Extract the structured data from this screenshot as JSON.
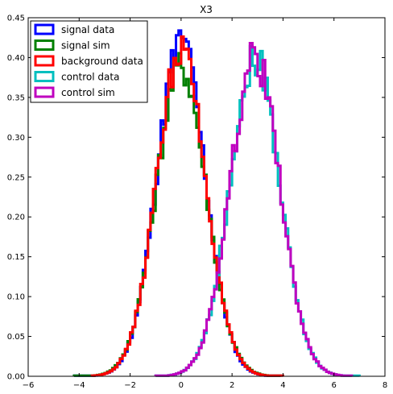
{
  "chart_data": {
    "type": "line",
    "title": "X3",
    "xlabel": "",
    "ylabel": "",
    "xlim": [
      -6,
      8
    ],
    "ylim": [
      0,
      0.45
    ],
    "xticks": [
      "−6",
      "−4",
      "−2",
      "0",
      "2",
      "4",
      "6",
      "8"
    ],
    "yticks": [
      "0.00",
      "0.05",
      "0.10",
      "0.15",
      "0.20",
      "0.25",
      "0.30",
      "0.35",
      "0.40",
      "0.45"
    ],
    "grid": false,
    "legend": "top-left",
    "series": [
      {
        "name": "signal data",
        "color": "#0000ff",
        "mean": 0.0,
        "peak": 0.42,
        "sigma": 0.95,
        "range": [
          -4.2,
          3.9
        ],
        "peak_bin": 0.2
      },
      {
        "name": "signal sim",
        "color": "#008000",
        "mean": 0.0,
        "peak": 0.39,
        "sigma": 0.98,
        "range": [
          -4.2,
          3.9
        ]
      },
      {
        "name": "background data",
        "color": "#ff0000",
        "mean": 0.0,
        "peak": 0.41,
        "sigma": 0.96,
        "range": [
          -3.5,
          4.0
        ]
      },
      {
        "name": "control data",
        "color": "#00bfbf",
        "mean": 2.9,
        "peak": 0.4,
        "sigma": 0.98,
        "range": [
          -1.0,
          7.0
        ]
      },
      {
        "name": "control sim",
        "color": "#bf00bf",
        "mean": 2.9,
        "peak": 0.4,
        "sigma": 0.98,
        "range": [
          -1.0,
          6.7
        ]
      }
    ]
  }
}
